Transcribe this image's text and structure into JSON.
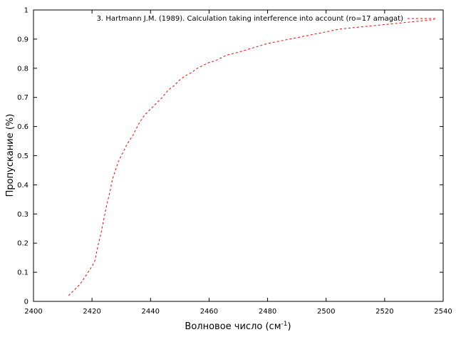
{
  "chart_data": {
    "type": "line",
    "title": "",
    "xlabel": "Волновое число (см",
    "xlabel_superscript": "-1",
    "xlabel_suffix": ")",
    "ylabel": "Пропускание (%)",
    "xlim": [
      2400,
      2540
    ],
    "ylim": [
      0,
      1
    ],
    "x_ticks": [
      "2400",
      "2420",
      "2440",
      "2460",
      "2480",
      "2500",
      "2520",
      "2540"
    ],
    "y_ticks": [
      "0",
      "0.1",
      "0.2",
      "0.3",
      "0.4",
      "0.5",
      "0.6",
      "0.7",
      "0.8",
      "0.9",
      "1"
    ],
    "grid": false,
    "legend_position": "top-right",
    "series": [
      {
        "name": "3. Hartmann J.M. (1989). Calculation taking interference into account (ro=17 amagat)",
        "color": "#ff0000",
        "line_style": "dashed",
        "x": [
          2412,
          2414,
          2416,
          2418,
          2420,
          2421,
          2422,
          2423,
          2424,
          2425,
          2426,
          2427,
          2428,
          2429,
          2430,
          2432,
          2434,
          2436,
          2438,
          2440,
          2442,
          2444,
          2446,
          2448,
          2450,
          2452,
          2454,
          2456,
          2458,
          2460,
          2462,
          2464,
          2466,
          2468,
          2470,
          2475,
          2480,
          2485,
          2490,
          2495,
          2500,
          2505,
          2510,
          2515,
          2520,
          2525,
          2530,
          2535,
          2537
        ],
        "y": [
          0.02,
          0.04,
          0.06,
          0.09,
          0.12,
          0.14,
          0.19,
          0.23,
          0.28,
          0.33,
          0.37,
          0.42,
          0.45,
          0.48,
          0.5,
          0.54,
          0.57,
          0.61,
          0.64,
          0.66,
          0.68,
          0.7,
          0.725,
          0.74,
          0.76,
          0.775,
          0.785,
          0.8,
          0.81,
          0.82,
          0.825,
          0.835,
          0.845,
          0.85,
          0.855,
          0.87,
          0.885,
          0.895,
          0.905,
          0.915,
          0.925,
          0.935,
          0.94,
          0.945,
          0.95,
          0.955,
          0.96,
          0.965,
          0.967
        ]
      }
    ]
  }
}
